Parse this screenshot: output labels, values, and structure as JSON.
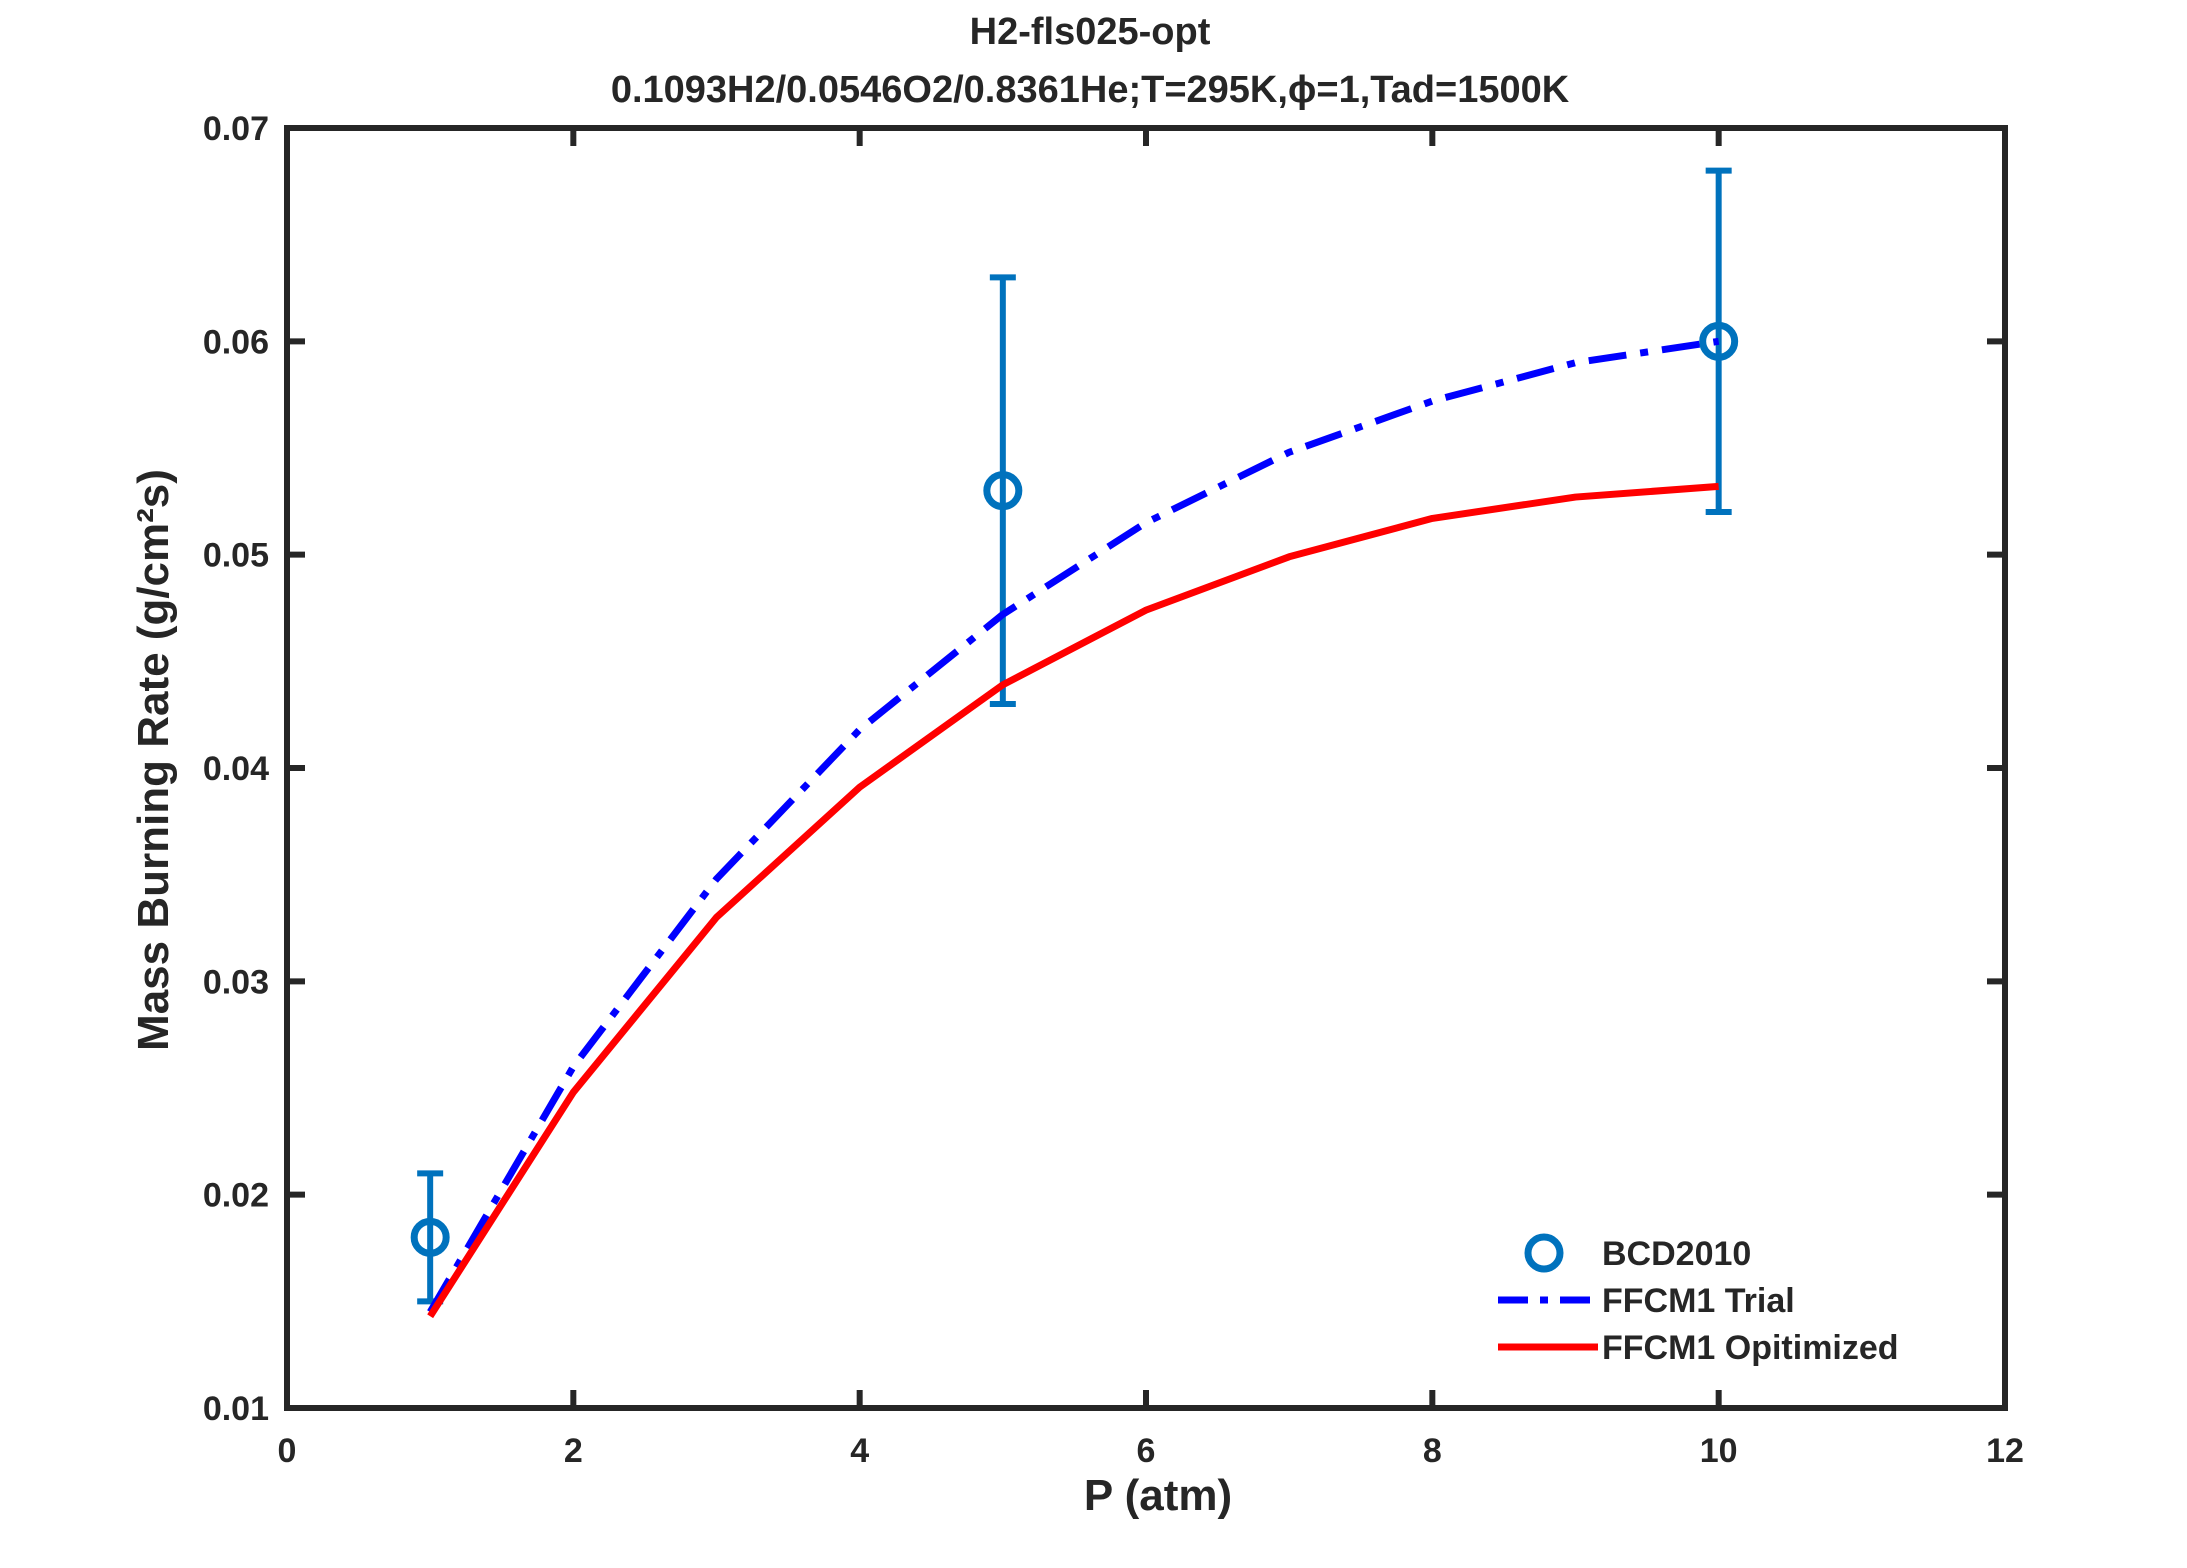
{
  "chart_data": {
    "type": "line",
    "title": "H2-fls025-opt",
    "subtitle": "0.1093H2/0.0546O2/0.8361He;T=295K,ϕ=1,Tad=1500K",
    "xlabel": "P (atm)",
    "ylabel": "Mass Burning Rate (g/cm²s)",
    "xlim": [
      0,
      12
    ],
    "ylim": [
      0.01,
      0.07
    ],
    "x_ticks": [
      "0",
      "2",
      "4",
      "6",
      "8",
      "10",
      "12"
    ],
    "y_ticks": [
      "0.01",
      "0.02",
      "0.03",
      "0.04",
      "0.05",
      "0.06",
      "0.07"
    ],
    "grid": false,
    "legend_position": "bottom-right",
    "series": [
      {
        "name": "BCD2010",
        "kind": "scatter-errorbar",
        "color": "#0072BD",
        "marker": "circle",
        "x": [
          1,
          5,
          10
        ],
        "y": [
          0.018,
          0.053,
          0.06
        ],
        "y_low": [
          0.015,
          0.043,
          0.052
        ],
        "y_high": [
          0.021,
          0.063,
          0.068
        ]
      },
      {
        "name": "FFCM1 Trial",
        "kind": "line",
        "color": "#0000FF",
        "line_style": "dash-dot",
        "x": [
          1,
          2,
          3,
          4,
          5,
          6,
          7,
          8,
          9,
          10
        ],
        "y": [
          0.0145,
          0.026,
          0.0348,
          0.0418,
          0.0472,
          0.0515,
          0.0548,
          0.0572,
          0.059,
          0.06
        ]
      },
      {
        "name": "FFCM1 Opitimized",
        "kind": "line",
        "color": "#FF0000",
        "line_style": "solid",
        "x": [
          1,
          2,
          3,
          4,
          5,
          6,
          7,
          8,
          9,
          10
        ],
        "y": [
          0.0143,
          0.0248,
          0.033,
          0.0391,
          0.0439,
          0.0474,
          0.0499,
          0.0517,
          0.0527,
          0.0532
        ]
      }
    ]
  }
}
